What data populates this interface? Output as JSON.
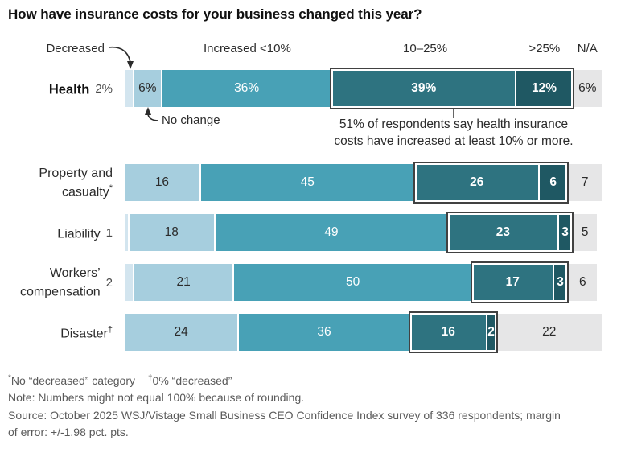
{
  "title": "How have insurance costs for your business changed this year?",
  "legend": {
    "decreased": "Decreased",
    "no_change": "No change",
    "inc_lt10": "Increased <10%",
    "inc_10_25": "10–25%",
    "inc_gt25": ">25%",
    "na": "N/A"
  },
  "callout": {
    "line1": "51% of respondents say health insurance",
    "line2": "costs have increased at least 10% or more."
  },
  "colors": {
    "segments": {
      "decreased": "#d3e5ef",
      "no_change": "#a6cede",
      "inc_lt10": "#48a1b6",
      "inc_10_25": "#2e7380",
      "inc_gt25": "#1f5863",
      "na": "#e6e6e7"
    },
    "outline": "#414141",
    "separator": "#ffffff",
    "title_text": "#111111",
    "footnote_text": "#5a5a5a"
  },
  "chart_data": {
    "type": "bar",
    "stacked": true,
    "orientation": "horizontal",
    "unit": "percent",
    "xlim": [
      0,
      100
    ],
    "segments": [
      "Decreased",
      "No change",
      "Increased <10%",
      "10–25%",
      ">25%",
      "N/A"
    ],
    "highlight_group": [
      "10–25%",
      ">25%"
    ],
    "rows": [
      {
        "label": "Health",
        "sup": "",
        "decreased_label": "2%",
        "values": {
          "decreased": 2,
          "no_change": 6,
          "inc_lt10": 36,
          "inc_10_25": 39,
          "inc_gt25": 12,
          "na": 6
        },
        "labels": {
          "no_change": "6%",
          "inc_lt10": "36%",
          "inc_10_25": "39%",
          "inc_gt25": "12%",
          "na": "6%"
        }
      },
      {
        "label": "Property and casualty",
        "sup": "*",
        "decreased_label": "",
        "values": {
          "decreased": 0,
          "no_change": 16,
          "inc_lt10": 45,
          "inc_10_25": 26,
          "inc_gt25": 6,
          "na": 7
        },
        "labels": {
          "no_change": "16",
          "inc_lt10": "45",
          "inc_10_25": "26",
          "inc_gt25": "6",
          "na": "7"
        }
      },
      {
        "label": "Liability",
        "sup": "",
        "decreased_label": "1",
        "values": {
          "decreased": 1,
          "no_change": 18,
          "inc_lt10": 49,
          "inc_10_25": 23,
          "inc_gt25": 3,
          "na": 5
        },
        "labels": {
          "no_change": "18",
          "inc_lt10": "49",
          "inc_10_25": "23",
          "inc_gt25": "3",
          "na": "5"
        }
      },
      {
        "label": "Workers’ compensation",
        "sup": "",
        "decreased_label": "2",
        "values": {
          "decreased": 2,
          "no_change": 21,
          "inc_lt10": 50,
          "inc_10_25": 17,
          "inc_gt25": 3,
          "na": 6
        },
        "labels": {
          "no_change": "21",
          "inc_lt10": "50",
          "inc_10_25": "17",
          "inc_gt25": "3",
          "na": "6"
        }
      },
      {
        "label": "Disaster",
        "sup": "†",
        "decreased_label": "",
        "values": {
          "decreased": 0,
          "no_change": 24,
          "inc_lt10": 36,
          "inc_10_25": 16,
          "inc_gt25": 2,
          "na": 22
        },
        "labels": {
          "no_change": "24",
          "inc_lt10": "36",
          "inc_10_25": "16",
          "inc_gt25": "2",
          "na": "22"
        }
      }
    ]
  },
  "footnotes": {
    "fn1_sup": "*",
    "fn1_text": "No “decreased” category",
    "fn2_sup": "†",
    "fn2_text": "0% “decreased”",
    "note": "Note: Numbers might not equal 100% because of rounding.",
    "source": "Source: October 2025 WSJ/Vistage Small Business CEO Confidence Index survey of 336 respondents; margin of error: +/-1.98 pct. pts."
  }
}
